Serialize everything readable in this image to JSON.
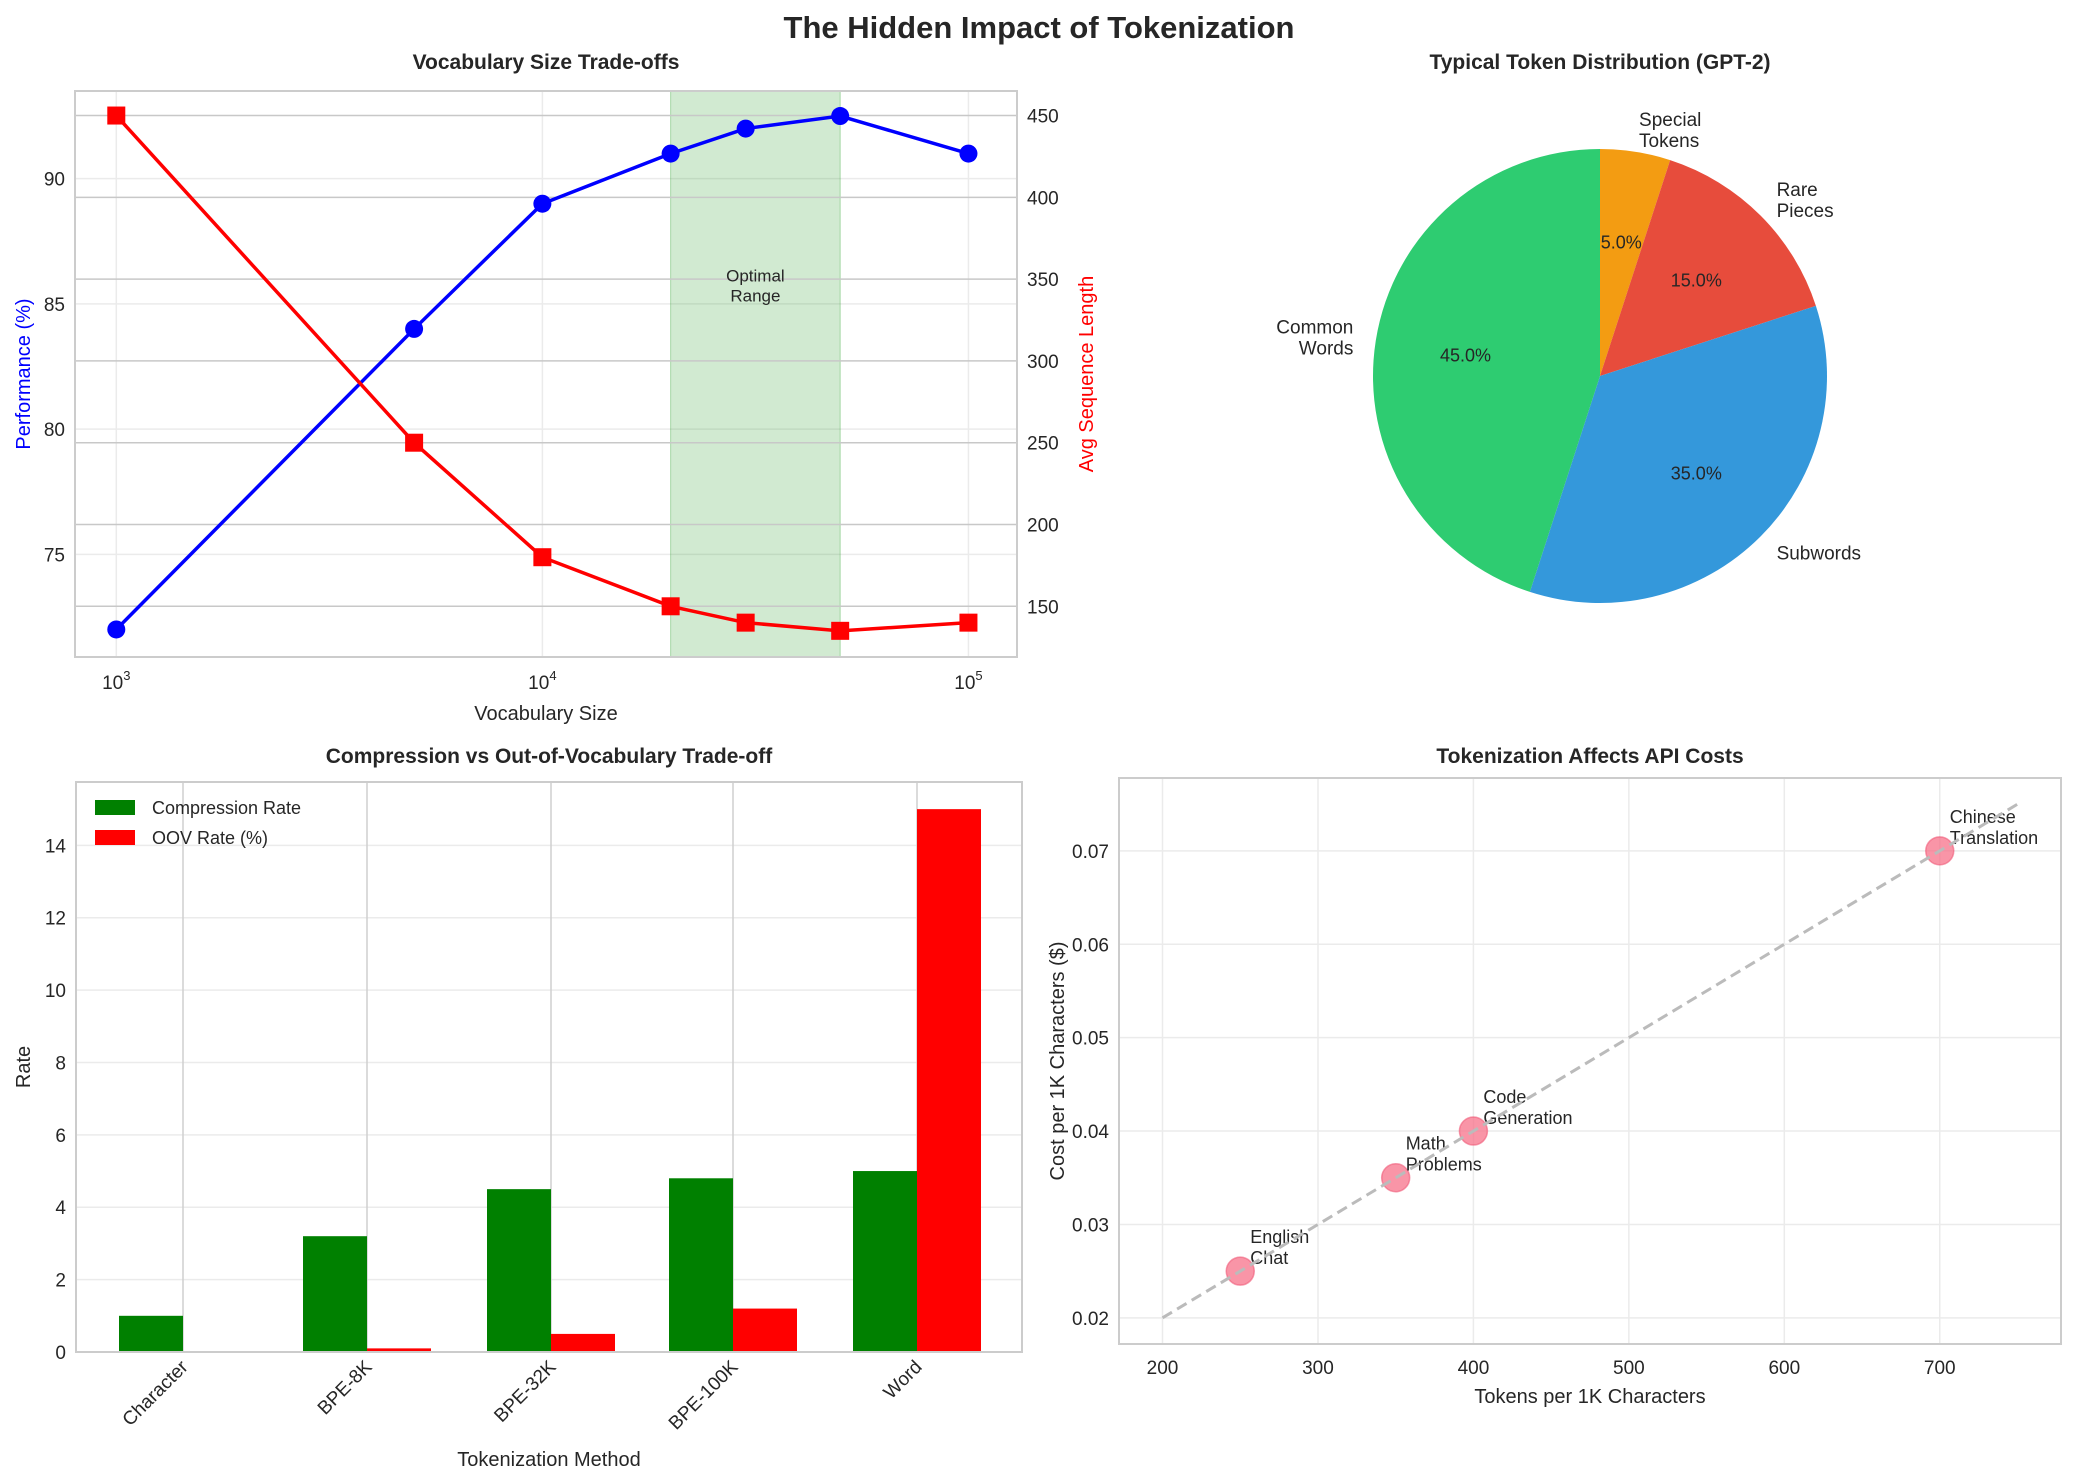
{
  "title": "The Hidden Impact of Tokenization",
  "chart_data": [
    {
      "type": "line",
      "title": "Vocabulary Size Trade-offs",
      "xlabel": "Vocabulary Size",
      "x_scale": "log",
      "xlim": [
        800,
        130000
      ],
      "x": [
        1000,
        5000,
        10000,
        20000,
        30000,
        50000,
        100000
      ],
      "xtick_values": [
        1000,
        10000,
        100000
      ],
      "xtick_labels": [
        {
          "base": "10",
          "exp": "3"
        },
        {
          "base": "10",
          "exp": "4"
        },
        {
          "base": "10",
          "exp": "5"
        }
      ],
      "grid": true,
      "series": [
        {
          "name": "Performance",
          "axis": "left",
          "ylabel": "Performance (%)",
          "values": [
            72,
            84,
            89,
            91,
            92,
            92.5,
            91
          ],
          "color": "#0000ff",
          "marker": "circle"
        },
        {
          "name": "Avg Sequence Length",
          "axis": "right",
          "ylabel": "Avg Sequence Length",
          "values": [
            450,
            250,
            180,
            150,
            140,
            135,
            140
          ],
          "color": "#ff0000",
          "marker": "square"
        }
      ],
      "y_left": {
        "label": "Performance (%)",
        "lim": [
          70.9,
          93.5
        ],
        "ticks": [
          "75",
          "80",
          "85",
          "90"
        ],
        "color": "#0000ff"
      },
      "y_right": {
        "label": "Avg Sequence Length",
        "lim": [
          119,
          465
        ],
        "ticks": [
          "150",
          "200",
          "250",
          "300",
          "350",
          "400",
          "450"
        ],
        "color": "#ff0000"
      },
      "shaded_region": {
        "x_range": [
          20000,
          50000
        ],
        "color": "#2ca02c",
        "label_lines": [
          "Optimal",
          "Range"
        ]
      }
    },
    {
      "type": "pie",
      "title": "Typical Token Distribution (GPT-2)",
      "start_angle": 90,
      "direction": "clockwise",
      "slices": [
        {
          "label_lines": [
            "Special",
            "Tokens"
          ],
          "value": 5.0,
          "pct": "5.0%",
          "color": "#f39c12"
        },
        {
          "label_lines": [
            "Rare",
            "Pieces"
          ],
          "value": 15.0,
          "pct": "15.0%",
          "color": "#e74c3c"
        },
        {
          "label_lines": [
            "Subwords"
          ],
          "value": 35.0,
          "pct": "35.0%",
          "color": "#3498db"
        },
        {
          "label_lines": [
            "Common",
            "Words"
          ],
          "value": 45.0,
          "pct": "45.0%",
          "color": "#2ecc71"
        }
      ]
    },
    {
      "type": "bar",
      "title": "Compression vs Out-of-Vocabulary Trade-off",
      "xlabel": "Tokenization Method",
      "ylabel": "Rate",
      "categories": [
        "Character",
        "BPE-8K",
        "BPE-32K",
        "BPE-100K",
        "Word"
      ],
      "ylim": [
        0,
        15.75
      ],
      "yticks": [
        "0",
        "2",
        "4",
        "6",
        "8",
        "10",
        "12",
        "14"
      ],
      "legend": "top-left",
      "grid": true,
      "series": [
        {
          "name": "Compression Rate",
          "values": [
            1,
            3.2,
            4.5,
            4.8,
            5
          ],
          "color": "#008000"
        },
        {
          "name": "OOV Rate (%)",
          "values": [
            0,
            0.1,
            0.5,
            1.2,
            15
          ],
          "color": "#ff0000"
        }
      ]
    },
    {
      "type": "scatter",
      "title": "Tokenization Affects API Costs",
      "xlabel": "Tokens per 1K Characters",
      "ylabel": "Cost per 1K Characters ($)",
      "xlim": [
        172,
        778
      ],
      "ylim": [
        0.0172,
        0.0778
      ],
      "xticks": [
        "200",
        "300",
        "400",
        "500",
        "600",
        "700"
      ],
      "yticks": [
        "0.02",
        "0.03",
        "0.04",
        "0.05",
        "0.06",
        "0.07"
      ],
      "grid": true,
      "color": "#f77189",
      "points": [
        {
          "x": 250,
          "y": 0.025,
          "label_lines": [
            "English",
            "Chat"
          ]
        },
        {
          "x": 350,
          "y": 0.035,
          "label_lines": [
            "Math",
            "Problems"
          ]
        },
        {
          "x": 400,
          "y": 0.04,
          "label_lines": [
            "Code",
            "Generation"
          ]
        },
        {
          "x": 700,
          "y": 0.07,
          "label_lines": [
            "Chinese",
            "Translation"
          ]
        }
      ],
      "trend_line": {
        "x": [
          200,
          750
        ],
        "y": [
          0.02,
          0.075
        ],
        "style": "dashed",
        "color": "#bbbbbb"
      }
    }
  ]
}
